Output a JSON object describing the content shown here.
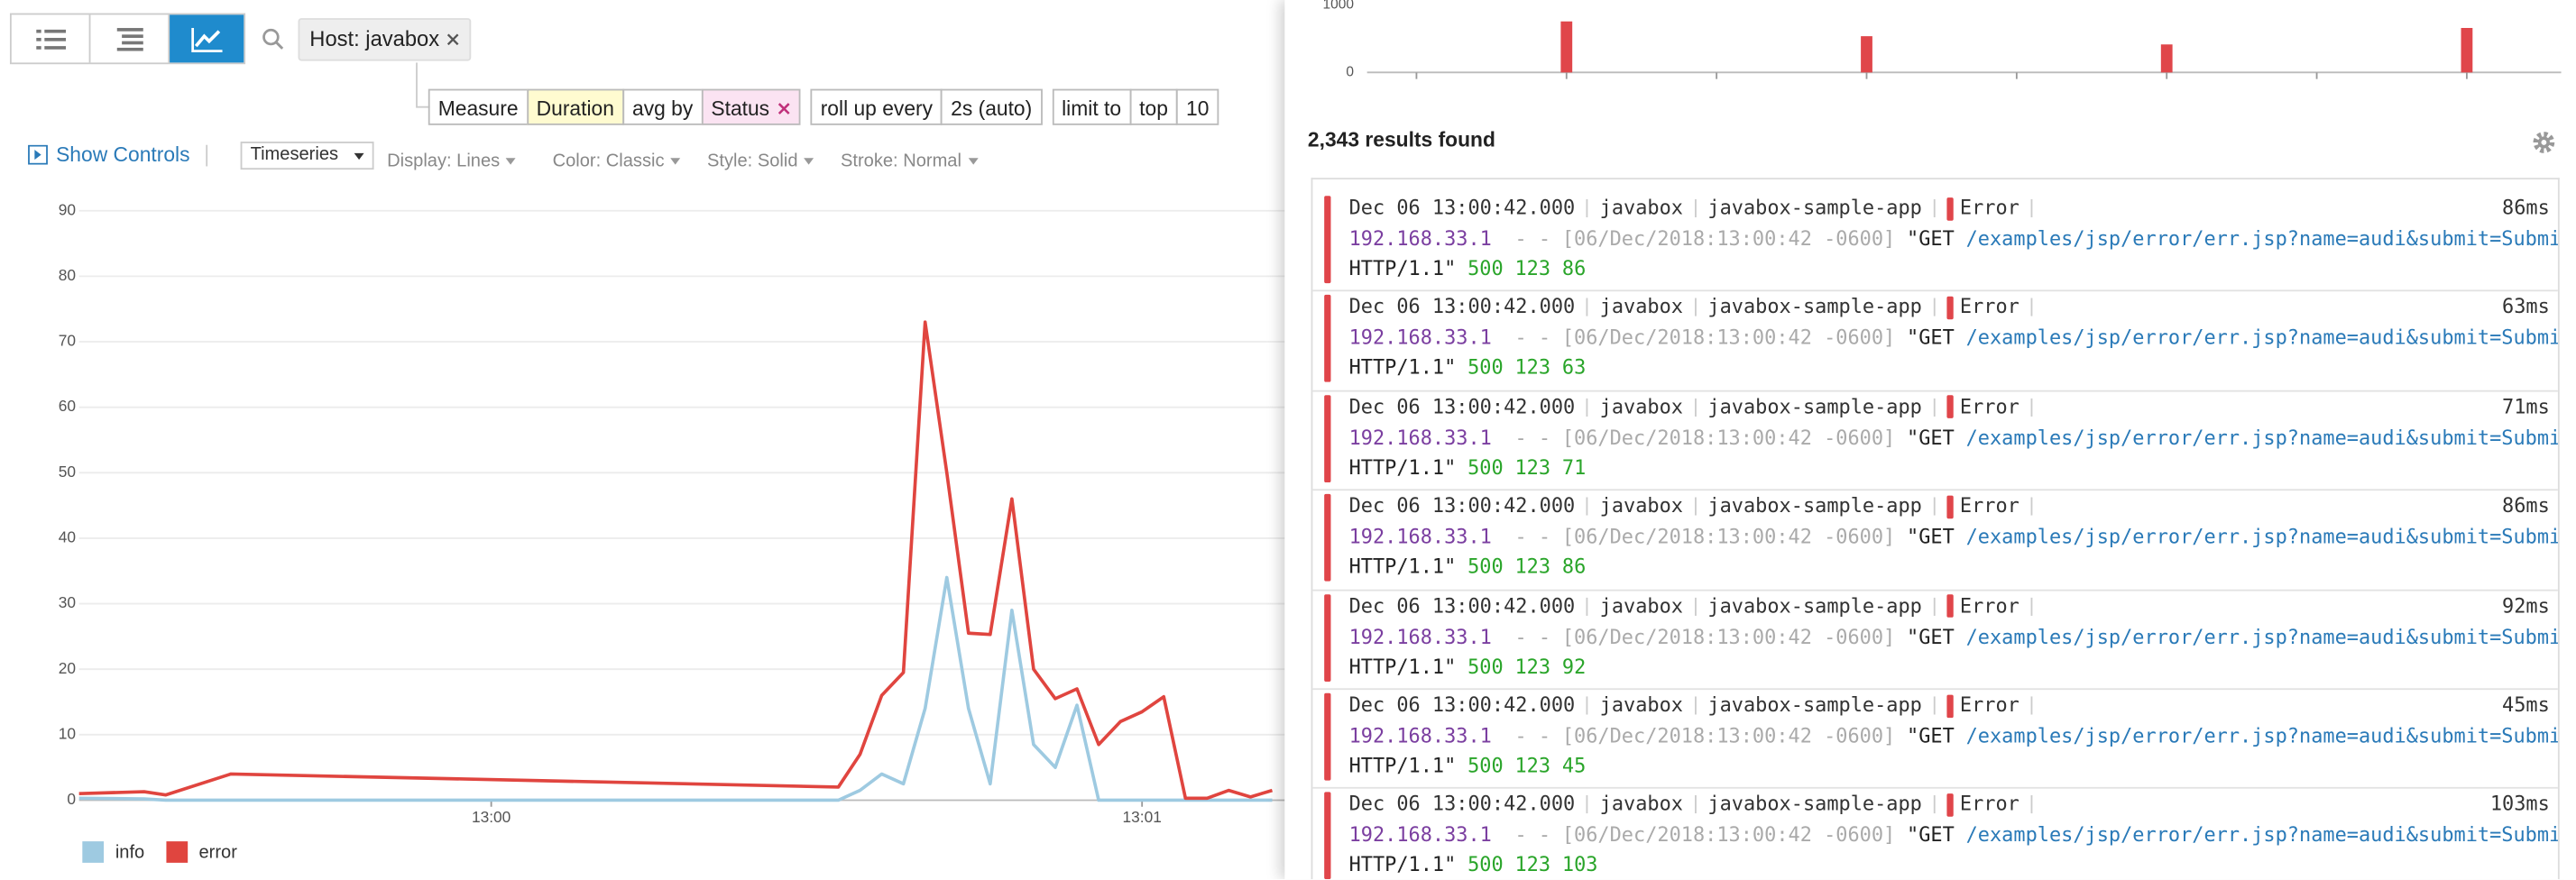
{
  "toolbar": {
    "search_tag": "Host: javabox"
  },
  "query": {
    "measure_label": "Measure",
    "measure": "Duration",
    "agg_label": "avg by",
    "group": "Status",
    "rollup_label": "roll up every",
    "rollup": "2s (auto)",
    "limit_label": "limit to",
    "limit_dir": "top",
    "limit": "10"
  },
  "controls": {
    "show_controls": "Show Controls",
    "viz": "Timeseries",
    "display": "Display: Lines",
    "color": "Color: Classic",
    "style": "Style: Solid",
    "stroke": "Stroke: Normal"
  },
  "chart_data": [
    {
      "type": "line",
      "x": [
        -38,
        -32,
        -30,
        -24,
        32,
        34,
        36,
        38,
        40,
        42,
        44,
        46,
        48,
        50,
        52,
        54,
        56,
        58,
        60,
        62,
        64,
        66,
        68,
        70,
        72
      ],
      "xlim": [
        -38,
        73
      ],
      "xticks": [
        {
          "value": 0,
          "label": "13:00"
        },
        {
          "value": 60,
          "label": "13:01"
        }
      ],
      "ylim": [
        0,
        90
      ],
      "yticks": [
        0,
        10,
        20,
        30,
        40,
        50,
        60,
        70,
        80,
        90
      ],
      "grid": true,
      "series": [
        {
          "name": "info",
          "color": "#9ecae1",
          "values": [
            0.3,
            0.2,
            0,
            0,
            0,
            1.5,
            4,
            2.5,
            14,
            34,
            14,
            2.5,
            29,
            8.5,
            5,
            14.5,
            0,
            0,
            0,
            0,
            0,
            0,
            0,
            0,
            0
          ]
        },
        {
          "name": "error",
          "color": "#e0453f",
          "values": [
            1,
            1.3,
            0.8,
            4,
            2,
            7,
            16,
            19.5,
            73,
            50,
            25.5,
            25.3,
            46,
            20,
            15.5,
            17,
            8.5,
            12,
            13.5,
            15.8,
            0.3,
            0.3,
            1.5,
            0.5,
            1.5
          ]
        }
      ]
    },
    {
      "type": "bar",
      "categories": [
        null,
        null,
        null,
        null,
        null,
        null,
        null,
        null
      ],
      "values": [
        null,
        756,
        null,
        537,
        null,
        415,
        null,
        659
      ],
      "color": "#e0464a",
      "ylim": [
        0,
        1000
      ],
      "yticks": [
        0,
        1000
      ]
    }
  ],
  "results": {
    "count": "2,343 results found",
    "logs": [
      {
        "date": "Dec 06 13:00:42.000",
        "host": "javabox",
        "service": "javabox-sample-app",
        "status": "Error",
        "duration": "86ms",
        "ip": "192.168.33.1",
        "ident": "- -",
        "timestamp": "[06/Dec/2018:13:00:42 -0600]",
        "method": "\"GET",
        "path": "/examples/jsp/error/err.jsp?name=audi&submit=Submit",
        "protocol": "HTTP/1.1\"",
        "code": "500",
        "size": "123",
        "time": "86"
      },
      {
        "date": "Dec 06 13:00:42.000",
        "host": "javabox",
        "service": "javabox-sample-app",
        "status": "Error",
        "duration": "63ms",
        "ip": "192.168.33.1",
        "ident": "- -",
        "timestamp": "[06/Dec/2018:13:00:42 -0600]",
        "method": "\"GET",
        "path": "/examples/jsp/error/err.jsp?name=audi&submit=Submit",
        "protocol": "HTTP/1.1\"",
        "code": "500",
        "size": "123",
        "time": "63"
      },
      {
        "date": "Dec 06 13:00:42.000",
        "host": "javabox",
        "service": "javabox-sample-app",
        "status": "Error",
        "duration": "71ms",
        "ip": "192.168.33.1",
        "ident": "- -",
        "timestamp": "[06/Dec/2018:13:00:42 -0600]",
        "method": "\"GET",
        "path": "/examples/jsp/error/err.jsp?name=audi&submit=Submit",
        "protocol": "HTTP/1.1\"",
        "code": "500",
        "size": "123",
        "time": "71"
      },
      {
        "date": "Dec 06 13:00:42.000",
        "host": "javabox",
        "service": "javabox-sample-app",
        "status": "Error",
        "duration": "86ms",
        "ip": "192.168.33.1",
        "ident": "- -",
        "timestamp": "[06/Dec/2018:13:00:42 -0600]",
        "method": "\"GET",
        "path": "/examples/jsp/error/err.jsp?name=audi&submit=Submit",
        "protocol": "HTTP/1.1\"",
        "code": "500",
        "size": "123",
        "time": "86"
      },
      {
        "date": "Dec 06 13:00:42.000",
        "host": "javabox",
        "service": "javabox-sample-app",
        "status": "Error",
        "duration": "92ms",
        "ip": "192.168.33.1",
        "ident": "- -",
        "timestamp": "[06/Dec/2018:13:00:42 -0600]",
        "method": "\"GET",
        "path": "/examples/jsp/error/err.jsp?name=audi&submit=Submit",
        "protocol": "HTTP/1.1\"",
        "code": "500",
        "size": "123",
        "time": "92"
      },
      {
        "date": "Dec 06 13:00:42.000",
        "host": "javabox",
        "service": "javabox-sample-app",
        "status": "Error",
        "duration": "45ms",
        "ip": "192.168.33.1",
        "ident": "- -",
        "timestamp": "[06/Dec/2018:13:00:42 -0600]",
        "method": "\"GET",
        "path": "/examples/jsp/error/err.jsp?name=audi&submit=Submit",
        "protocol": "HTTP/1.1\"",
        "code": "500",
        "size": "123",
        "time": "45"
      },
      {
        "date": "Dec 06 13:00:42.000",
        "host": "javabox",
        "service": "javabox-sample-app",
        "status": "Error",
        "duration": "103ms",
        "ip": "192.168.33.1",
        "ident": "- -",
        "timestamp": "[06/Dec/2018:13:00:42 -0600]",
        "method": "\"GET",
        "path": "/examples/jsp/error/err.jsp?name=audi&submit=Submit",
        "protocol": "HTTP/1.1\"",
        "code": "500",
        "size": "123",
        "time": "103"
      }
    ]
  }
}
